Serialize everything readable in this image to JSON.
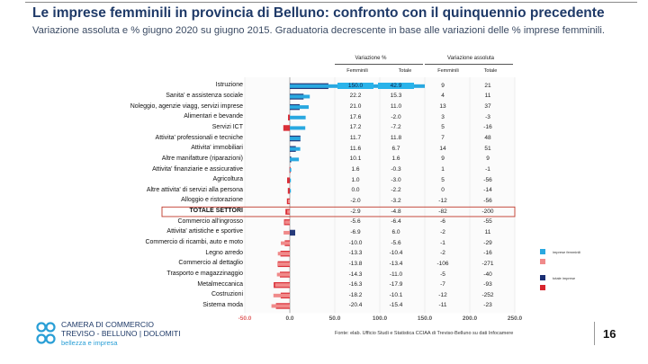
{
  "title": "Le imprese femminili in provincia di Belluno: confronto con il quinquennio precedente",
  "subtitle": "Variazione assoluta e % giugno 2020 su giugno 2015. Graduatoria decrescente in base alle variazioni delle % imprese femminili.",
  "table_header": {
    "group_pct": "Variazione %",
    "group_abs": "Variazione assoluta",
    "columns": [
      "Femminili",
      "Totale",
      "Femminili",
      "Totale"
    ]
  },
  "legend": [
    {
      "label": "imprese femminili",
      "color": "#29a8e0"
    },
    {
      "label": "",
      "color": "#f08a8a"
    },
    {
      "label": "totale imprese",
      "color": "#1a2f73"
    },
    {
      "label": "",
      "color": "#d8242d"
    }
  ],
  "source": "Fonte: elab. Ufficio Studi e Statistica CCIAA di Treviso-Belluno su dati Infocamere",
  "page_number": "16",
  "logo": {
    "line1": "CAMERA DI COMMERCIO",
    "line2": "TREVISO - BELLUNO | DOLOMITI",
    "line3": "bellezza e impresa"
  },
  "colors": {
    "female_pos": "#29a8e0",
    "female_neg": "#f08a8a",
    "total_pos": "#1a2f73",
    "total_neg": "#d8242d",
    "highlight_cell": "#29b3ea",
    "total_row_border": "#c0392b"
  },
  "chart_data": {
    "type": "bar",
    "orientation": "horizontal",
    "x_ticks": [
      "-50.0",
      "0.0",
      "50.0",
      "100.0",
      "150.0",
      "200.0",
      "250.0"
    ],
    "xlim": [
      -50,
      250
    ],
    "series": [
      {
        "name": "Variazione % Femminili"
      },
      {
        "name": "Variazione % Totale"
      }
    ],
    "rows": [
      {
        "label": "Istruzione",
        "female_pct": "150.0",
        "total_pct": "42.9",
        "female_abs": "9",
        "total_abs": "21"
      },
      {
        "label": "Sanita' e assistenza sociale",
        "female_pct": "22.2",
        "total_pct": "15.3",
        "female_abs": "4",
        "total_abs": "11"
      },
      {
        "label": "Noleggio, agenzie viagg, servizi imprese",
        "female_pct": "21.0",
        "total_pct": "11.0",
        "female_abs": "13",
        "total_abs": "37"
      },
      {
        "label": "Alimentari e bevande",
        "female_pct": "17.6",
        "total_pct": "-2.0",
        "female_abs": "3",
        "total_abs": "-3"
      },
      {
        "label": "Servizi ICT",
        "female_pct": "17.2",
        "total_pct": "-7.2",
        "female_abs": "5",
        "total_abs": "-16"
      },
      {
        "label": "Attivita' professionali e tecniche",
        "female_pct": "11.7",
        "total_pct": "11.8",
        "female_abs": "7",
        "total_abs": "48"
      },
      {
        "label": "Attivita' immobiliari",
        "female_pct": "11.6",
        "total_pct": "6.7",
        "female_abs": "14",
        "total_abs": "51"
      },
      {
        "label": "Altre manifatture (riparazioni)",
        "female_pct": "10.1",
        "total_pct": "1.6",
        "female_abs": "9",
        "total_abs": "9"
      },
      {
        "label": "Attivita' finanziarie e assicurative",
        "female_pct": "1.6",
        "total_pct": "-0.3",
        "female_abs": "1",
        "total_abs": "-1"
      },
      {
        "label": "Agricoltura",
        "female_pct": "1.0",
        "total_pct": "-3.0",
        "female_abs": "5",
        "total_abs": "-56"
      },
      {
        "label": "Altre attivita' di servizi alla persona",
        "female_pct": "0.0",
        "total_pct": "-2.2",
        "female_abs": "0",
        "total_abs": "-14"
      },
      {
        "label": "Alloggio e ristorazione",
        "female_pct": "-2.0",
        "total_pct": "-3.2",
        "female_abs": "-12",
        "total_abs": "-56"
      },
      {
        "label": "TOTALE SETTORI",
        "female_pct": "-2.9",
        "total_pct": "-4.8",
        "female_abs": "-82",
        "total_abs": "-200"
      },
      {
        "label": "Commercio all'ingrosso",
        "female_pct": "-5.6",
        "total_pct": "-6.4",
        "female_abs": "-6",
        "total_abs": "-55"
      },
      {
        "label": "Attivita' artistiche e sportive",
        "female_pct": "-6.9",
        "total_pct": "6.0",
        "female_abs": "-2",
        "total_abs": "11"
      },
      {
        "label": "Commercio di ricambi, auto e moto",
        "female_pct": "-10.0",
        "total_pct": "-5.6",
        "female_abs": "-1",
        "total_abs": "-29"
      },
      {
        "label": "Legno arredo",
        "female_pct": "-13.3",
        "total_pct": "-10.4",
        "female_abs": "-2",
        "total_abs": "-16"
      },
      {
        "label": "Commercio al dettaglio",
        "female_pct": "-13.8",
        "total_pct": "-13.4",
        "female_abs": "-106",
        "total_abs": "-271"
      },
      {
        "label": "Trasporto e magazzinaggio",
        "female_pct": "-14.3",
        "total_pct": "-11.0",
        "female_abs": "-5",
        "total_abs": "-40"
      },
      {
        "label": "Metalmeccanica",
        "female_pct": "-16.3",
        "total_pct": "-17.9",
        "female_abs": "-7",
        "total_abs": "-93"
      },
      {
        "label": "Costruzioni",
        "female_pct": "-18.2",
        "total_pct": "-10.1",
        "female_abs": "-12",
        "total_abs": "-252"
      },
      {
        "label": "Sistema moda",
        "female_pct": "-20.4",
        "total_pct": "-15.4",
        "female_abs": "-11",
        "total_abs": "-23"
      }
    ]
  }
}
